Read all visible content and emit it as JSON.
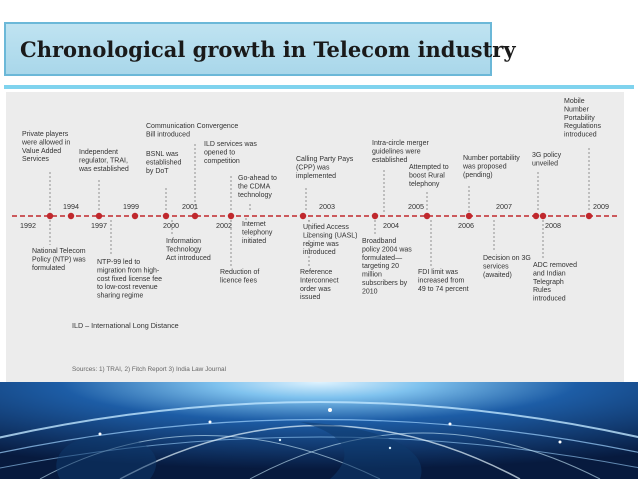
{
  "slide": {
    "title": "Chronological growth in Telecom industry"
  },
  "timeline": {
    "years": [
      {
        "label": "1992",
        "pos": "below-left"
      },
      {
        "label": "1994",
        "pos": "above"
      },
      {
        "label": "1997",
        "pos": "below"
      },
      {
        "label": "1999",
        "pos": "above"
      },
      {
        "label": "2000",
        "pos": "below"
      },
      {
        "label": "2001",
        "pos": "above"
      },
      {
        "label": "2002",
        "pos": "below"
      },
      {
        "label": "2003",
        "pos": "above"
      },
      {
        "label": "2004",
        "pos": "below"
      },
      {
        "label": "2005",
        "pos": "above"
      },
      {
        "label": "2006",
        "pos": "below"
      },
      {
        "label": "2007",
        "pos": "above"
      },
      {
        "label": "2008",
        "pos": "below"
      },
      {
        "label": "2009",
        "pos": "above"
      }
    ],
    "events_above": [
      [
        "Private players",
        "were allowed in",
        "Value Added",
        "Services"
      ],
      [
        "Independent",
        "regulator, TRAI,",
        "was established"
      ],
      [
        "BSNL was",
        "established",
        "by DoT"
      ],
      [
        "Communication Convergence",
        "Bill introduced"
      ],
      [
        "ILD services was",
        "opened to",
        "competition"
      ],
      [
        "Go-ahead to",
        "the CDMA",
        "technology"
      ],
      [
        "Calling Party Pays",
        "(CPP) was",
        "implemented"
      ],
      [
        "Intra-circle merger",
        "guidelines were",
        "established"
      ],
      [
        "Attempted to",
        "boost Rural",
        "telephony"
      ],
      [
        "Number portability",
        "was proposed",
        "(pending)"
      ],
      [
        "3G policy",
        "unveiled"
      ],
      [
        "Mobile",
        "Number",
        "Portability",
        "Regulations",
        "introduced"
      ]
    ],
    "events_below": [
      [
        "National Telecom",
        "Policy (NTP) was",
        "formulated"
      ],
      [
        "NTP-99 led to",
        "migration from high-",
        "cost fixed license fee",
        "to low-cost revenue",
        "sharing regime"
      ],
      [
        "Information",
        "Technology",
        "Act introduced"
      ],
      [
        "Reduction of",
        "licence fees"
      ],
      [
        "Internet",
        "telephony",
        "initiated"
      ],
      [
        "Unified Access",
        "Licensing (UASL)",
        "regime was",
        "introduced"
      ],
      [
        "Reference",
        "Interconnect",
        "order was",
        "issued"
      ],
      [
        "Broadband",
        "policy 2004 was",
        "formulated—",
        "targeting 20",
        "million",
        "subscribers by",
        "2010"
      ],
      [
        "FDI limit was",
        "increased from",
        "49 to 74 percent"
      ],
      [
        "Decision on 3G",
        "services",
        "(awaited)"
      ],
      [
        "ADC removed",
        "and Indian",
        "Telegraph",
        "Rules",
        "introduced"
      ]
    ],
    "footnote": "ILD – International Long Distance",
    "sources": "Sources: 1) TRAI, 2) Fitch Report 3) India Law Journal",
    "colors": {
      "axis": "#c0282d",
      "dot": "#c0282d",
      "text": "#333333",
      "callout": "#555555"
    }
  }
}
